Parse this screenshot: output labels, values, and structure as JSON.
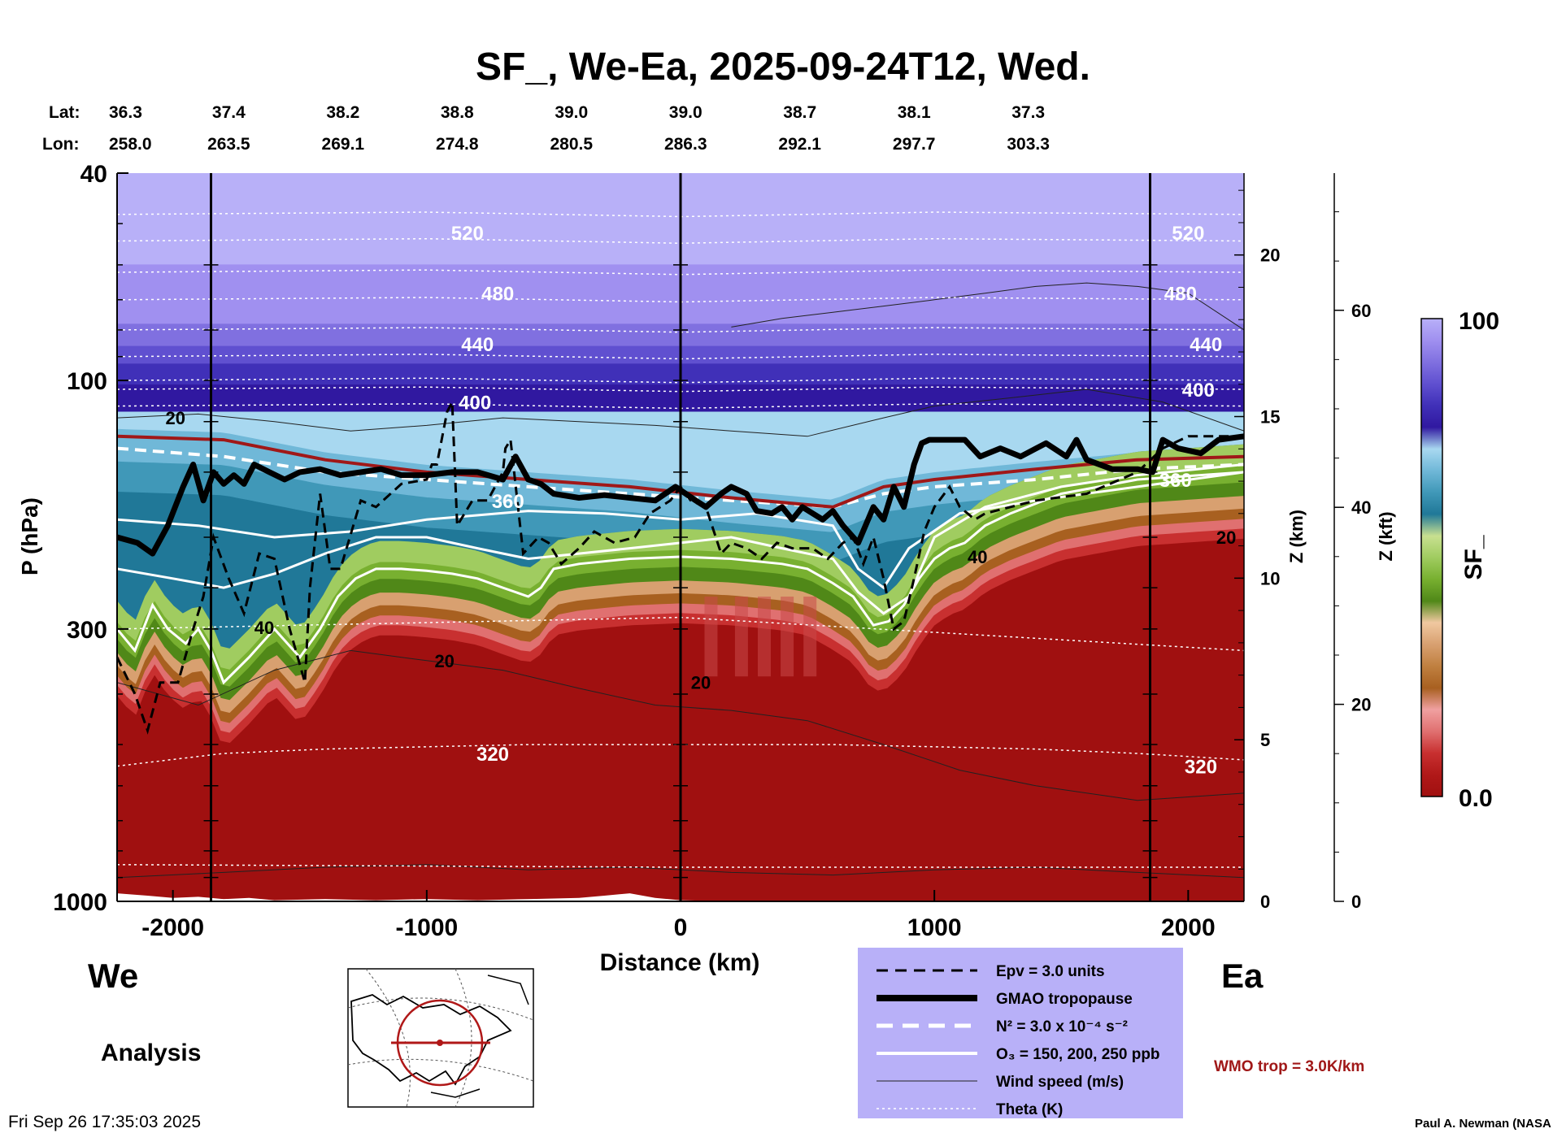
{
  "chart_data": {
    "type": "heatmap",
    "title": "SF_, We-Ea, 2025-09-24T12, Wed.",
    "xlabel": "Distance (km)",
    "ylabel": "P (hPa)",
    "xlim": [
      -2220,
      2220
    ],
    "ylim": [
      1000,
      40
    ],
    "x_ticks": [
      {
        "v": -2000,
        "label": "-2000"
      },
      {
        "v": -1000,
        "label": "-1000"
      },
      {
        "v": 0,
        "label": "0"
      },
      {
        "v": 1000,
        "label": "1000"
      },
      {
        "v": 2000,
        "label": "2000"
      }
    ],
    "y_ticks": [
      {
        "v": 40,
        "label": "40"
      },
      {
        "v": 100,
        "label": "100"
      },
      {
        "v": 300,
        "label": "300"
      },
      {
        "v": 1000,
        "label": "1000"
      }
    ],
    "z_km_axis": {
      "label": "Z (km)",
      "ticks": [
        {
          "v": 0,
          "label": "0"
        },
        {
          "v": 5,
          "label": "5"
        },
        {
          "v": 10,
          "label": "10"
        },
        {
          "v": 15,
          "label": "15"
        },
        {
          "v": 20,
          "label": "20"
        }
      ]
    },
    "z_kft_axis": {
      "label": "Z (kft)",
      "ticks": [
        {
          "v": 0,
          "label": "0"
        },
        {
          "v": 20,
          "label": "20"
        },
        {
          "v": 40,
          "label": "40"
        },
        {
          "v": 60,
          "label": "60"
        }
      ]
    },
    "lat_lon": {
      "lat_label": "Lat:",
      "lon_label": "Lon:",
      "positions": [
        -2220,
        -1780,
        -1330,
        -880,
        -430,
        20,
        470,
        920,
        1370
      ],
      "lats": [
        "36.3",
        "37.4",
        "38.2",
        "38.8",
        "39.0",
        "39.0",
        "38.7",
        "38.1",
        "37.3"
      ],
      "lons": [
        "258.0",
        "263.5",
        "269.1",
        "274.8",
        "280.5",
        "286.3",
        "292.1",
        "297.7",
        "303.3"
      ]
    },
    "vertical_lines_km": [
      -1850,
      0,
      1850
    ],
    "colorbar": {
      "label": "SF_",
      "max_label": "100",
      "min_label": "0.0",
      "colors": [
        "#a01010",
        "#b01818",
        "#c83030",
        "#e07070",
        "#f0a0a0",
        "#a86020",
        "#c08040",
        "#d8a070",
        "#f0c8a0",
        "#508818",
        "#78b030",
        "#a0cc60",
        "#c8e090",
        "#207898",
        "#4098b8",
        "#70b8d8",
        "#a8d8f0",
        "#3018a0",
        "#4030b8",
        "#6050d0",
        "#8070e0",
        "#a090f0",
        "#b8b0f8"
      ]
    },
    "theta_labels": [
      {
        "x": -840,
        "p": 52,
        "label": "520"
      },
      {
        "x": 2000,
        "p": 52,
        "label": "520"
      },
      {
        "x": -720,
        "p": 68,
        "label": "480"
      },
      {
        "x": 1970,
        "p": 68,
        "label": "480"
      },
      {
        "x": -800,
        "p": 85,
        "label": "440"
      },
      {
        "x": 2070,
        "p": 85,
        "label": "440"
      },
      {
        "x": -810,
        "p": 110,
        "label": "400"
      },
      {
        "x": 2040,
        "p": 104,
        "label": "400"
      },
      {
        "x": -680,
        "p": 170,
        "label": "360"
      },
      {
        "x": 1950,
        "p": 155,
        "label": "360"
      },
      {
        "x": -740,
        "p": 520,
        "label": "320"
      },
      {
        "x": 2050,
        "p": 550,
        "label": "320"
      }
    ],
    "wind_labels": [
      {
        "x": -1990,
        "p": 118,
        "label": "20"
      },
      {
        "x": -1640,
        "p": 298,
        "label": "40"
      },
      {
        "x": -930,
        "p": 345,
        "label": "20"
      },
      {
        "x": 80,
        "p": 380,
        "label": "20"
      },
      {
        "x": 1170,
        "p": 218,
        "label": "40"
      },
      {
        "x": 2150,
        "p": 200,
        "label": "20"
      }
    ],
    "series": [
      {
        "name": "GMAO tropopause",
        "x": [
          -2220,
          -2140,
          -2080,
          -2020,
          -1960,
          -1920,
          -1880,
          -1840,
          -1800,
          -1760,
          -1720,
          -1680,
          -1620,
          -1560,
          -1500,
          -1420,
          -1340,
          -1260,
          -1180,
          -1100,
          -1000,
          -900,
          -800,
          -700,
          -650,
          -600,
          -550,
          -500,
          -400,
          -300,
          -200,
          -100,
          -20,
          60,
          100,
          160,
          200,
          260,
          300,
          360,
          400,
          440,
          480,
          560,
          600,
          640,
          700,
          760,
          800,
          840,
          880,
          920,
          950,
          980,
          1040,
          1120,
          1180,
          1260,
          1340,
          1440,
          1520,
          1560,
          1600,
          1700,
          1800,
          1860,
          1900,
          1960,
          2050,
          2120,
          2220
        ],
        "p": [
          200,
          205,
          215,
          190,
          160,
          145,
          170,
          150,
          158,
          152,
          158,
          145,
          150,
          155,
          150,
          148,
          152,
          150,
          148,
          152,
          152,
          150,
          150,
          155,
          140,
          155,
          158,
          165,
          168,
          166,
          168,
          170,
          160,
          170,
          175,
          165,
          160,
          165,
          178,
          180,
          175,
          185,
          175,
          185,
          178,
          190,
          205,
          175,
          185,
          160,
          175,
          145,
          132,
          130,
          130,
          130,
          140,
          135,
          140,
          132,
          140,
          130,
          142,
          148,
          148,
          150,
          130,
          135,
          138,
          130,
          128
        ]
      },
      {
        "name": "WMO trop",
        "x": [
          -2220,
          -1800,
          -1400,
          -1000,
          -600,
          -200,
          200,
          600,
          800,
          1000,
          1400,
          1800,
          2220
        ],
        "p": [
          128,
          130,
          142,
          150,
          155,
          160,
          168,
          175,
          160,
          155,
          148,
          142,
          140
        ]
      },
      {
        "name": "N2",
        "x": [
          -2220,
          -1800,
          -1400,
          -1000,
          -600,
          -200,
          200,
          600,
          800,
          1000,
          1400,
          1800,
          2220
        ],
        "p": [
          135,
          140,
          150,
          155,
          160,
          165,
          170,
          175,
          165,
          160,
          155,
          148,
          145
        ]
      },
      {
        "name": "O3 150",
        "x": [
          -2220,
          -1900,
          -1600,
          -1300,
          -1000,
          -600,
          -300,
          0,
          300,
          600,
          700,
          800,
          900,
          1100,
          1400,
          1800,
          2220
        ],
        "p": [
          185,
          190,
          200,
          195,
          185,
          178,
          180,
          185,
          180,
          190,
          230,
          250,
          210,
          180,
          170,
          160,
          150
        ]
      },
      {
        "name": "O3 200",
        "x": [
          -2220,
          -2000,
          -1800,
          -1600,
          -1400,
          -1200,
          -1000,
          -800,
          -600,
          -400,
          -200,
          0,
          200,
          400,
          600,
          700,
          800,
          900,
          1000,
          1200,
          1500,
          1800,
          2220
        ],
        "p": [
          230,
          240,
          250,
          235,
          215,
          200,
          200,
          210,
          220,
          215,
          210,
          205,
          200,
          210,
          220,
          255,
          280,
          260,
          200,
          175,
          160,
          152,
          145
        ]
      },
      {
        "name": "O3 250",
        "x": [
          -2220,
          -2150,
          -2080,
          -2020,
          -1950,
          -1900,
          -1850,
          -1800,
          -1700,
          -1600,
          -1500,
          -1420,
          -1350,
          -1280,
          -1200,
          -1100,
          -1000,
          -900,
          -800,
          -700,
          -600,
          -550,
          -500,
          -400,
          -200,
          0,
          200,
          400,
          500,
          600,
          680,
          760,
          820,
          880,
          940,
          1000,
          1060,
          1120,
          1200,
          1300,
          1500,
          1800,
          2220
        ],
        "p": [
          300,
          330,
          270,
          300,
          320,
          300,
          330,
          380,
          340,
          300,
          340,
          300,
          260,
          240,
          230,
          230,
          232,
          235,
          240,
          250,
          260,
          250,
          230,
          225,
          220,
          218,
          220,
          225,
          230,
          245,
          260,
          295,
          290,
          270,
          240,
          220,
          210,
          205,
          190,
          180,
          165,
          155,
          150
        ]
      },
      {
        "name": "Epv",
        "x": [
          -2220,
          -2150,
          -2100,
          -2050,
          -1980,
          -1920,
          -1880,
          -1840,
          -1780,
          -1720,
          -1660,
          -1600,
          -1540,
          -1480,
          -1460,
          -1420,
          -1380,
          -1340,
          -1260,
          -1200,
          -1100,
          -1000,
          -980,
          -960,
          -920,
          -900,
          -880,
          -820,
          -760,
          -700,
          -690,
          -670,
          -620,
          -560,
          -520,
          -470,
          -400,
          -340,
          -260,
          -180,
          -120,
          -80,
          -40,
          0,
          40,
          100,
          160,
          200,
          260,
          320,
          380,
          440,
          520,
          580,
          640,
          680,
          720,
          760,
          800,
          840,
          880,
          920,
          960,
          1000,
          1060,
          1100,
          1160,
          1200,
          1300,
          1400,
          1600,
          1800,
          1900,
          2000,
          2220
        ],
        "p": [
          340,
          400,
          470,
          380,
          380,
          300,
          260,
          200,
          240,
          280,
          215,
          220,
          300,
          380,
          250,
          165,
          230,
          230,
          170,
          175,
          158,
          155,
          145,
          145,
          115,
          110,
          190,
          170,
          170,
          150,
          135,
          130,
          215,
          200,
          205,
          225,
          210,
          195,
          205,
          200,
          180,
          175,
          170,
          160,
          170,
          175,
          215,
          205,
          210,
          220,
          205,
          210,
          210,
          220,
          205,
          200,
          225,
          200,
          240,
          300,
          290,
          240,
          195,
          175,
          160,
          175,
          185,
          180,
          175,
          170,
          165,
          150,
          135,
          128,
          128
        ]
      },
      {
        "name": "Theta",
        "x": [
          -2220,
          -1800,
          -1400,
          -1000,
          -600,
          -200,
          0,
          200,
          600,
          1000,
          1400,
          1800,
          2220
        ],
        "p": [
          550,
          520,
          510,
          505,
          500,
          500,
          500,
          500,
          500,
          505,
          510,
          520,
          535
        ]
      }
    ]
  },
  "legend": {
    "items": [
      {
        "kind": "epv",
        "label": "Epv = 3.0 units"
      },
      {
        "kind": "gmao",
        "label": "GMAO tropopause"
      },
      {
        "kind": "n2",
        "label": "N² = 3.0 x 10⁻⁴ s⁻²"
      },
      {
        "kind": "o3",
        "label": "O₃ = 150, 200, 250 ppb"
      },
      {
        "kind": "wind",
        "label": "Wind speed (m/s)"
      },
      {
        "kind": "theta",
        "label": "Theta (K)"
      }
    ]
  },
  "footer": {
    "west": "We",
    "east": "Ea",
    "analysis": "Analysis",
    "timestamp": "Fri Sep 26 17:35:03 2025",
    "wmo": "WMO trop = 3.0K/km",
    "author": "Paul A. Newman (NASA"
  },
  "colors": {
    "wmo_red": "#a01818",
    "legend_bg": "#b8b0f8"
  }
}
